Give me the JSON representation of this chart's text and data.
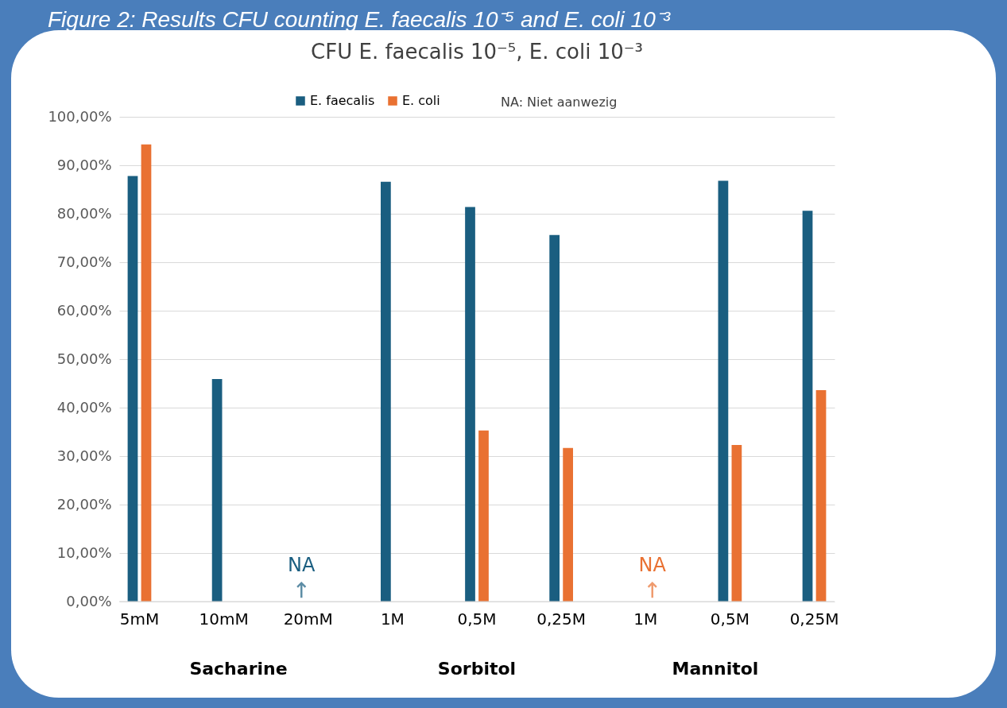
{
  "chart_data": {
    "type": "bar",
    "title": "Figure 2: Results CFU counting E. faecalis 10⁻⁵ and E. coli 10⁻³",
    "subtitle": "CFU E. faecalis 10⁻⁵, E. coli 10⁻³",
    "categories": [
      "5mM",
      "10mM",
      "20mM",
      "1M",
      "0,5M",
      "0,25M",
      "1M",
      "0,5M",
      "0,25M"
    ],
    "series": [
      {
        "name": "E. faecalis",
        "color": "#1a5e80",
        "values": [
          87.8,
          45.9,
          null,
          86.6,
          81.4,
          75.6,
          0,
          86.8,
          80.6
        ],
        "value_labels": [
          null,
          null,
          "NA",
          null,
          null,
          null,
          null,
          null,
          null
        ]
      },
      {
        "name": "E. coli",
        "color": "#e97132",
        "values": [
          94.3,
          0,
          0,
          0,
          35.3,
          31.7,
          null,
          32.3,
          43.6
        ],
        "value_labels": [
          null,
          null,
          null,
          null,
          null,
          null,
          "NA",
          null,
          null
        ]
      }
    ],
    "ylim": [
      0,
      100
    ],
    "yticks": [
      {
        "value": 0,
        "label": "0,00%"
      },
      {
        "value": 10,
        "label": "10,00%"
      },
      {
        "value": 20,
        "label": "20,00%"
      },
      {
        "value": 30,
        "label": "30,00%"
      },
      {
        "value": 40,
        "label": "40,00%"
      },
      {
        "value": 50,
        "label": "50,00%"
      },
      {
        "value": 60,
        "label": "60,00%"
      },
      {
        "value": 70,
        "label": "70,00%"
      },
      {
        "value": 80,
        "label": "80,00%"
      },
      {
        "value": 90,
        "label": "90,00%"
      },
      {
        "value": 100,
        "label": "100,00%"
      }
    ],
    "grid": "y",
    "legend": "top",
    "annotations": [
      "NA: Niet aanwezig",
      "Sacharine",
      "Sorbitol",
      "Mannitol"
    ]
  }
}
